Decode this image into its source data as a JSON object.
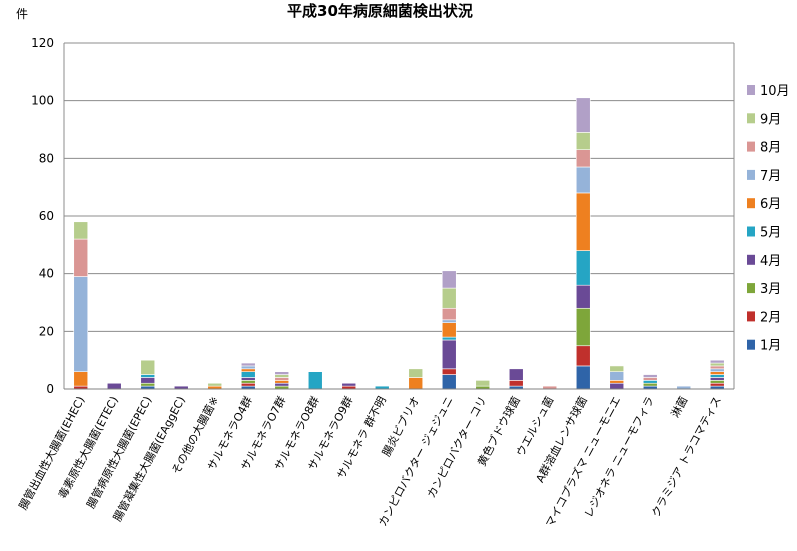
{
  "chart_data": {
    "type": "bar",
    "stacked": true,
    "title": "平成30年病原細菌検出状況",
    "ylabel": "件",
    "xlabel": "",
    "ylim": [
      0,
      120
    ],
    "yticks": [
      0,
      20,
      40,
      60,
      80,
      100,
      120
    ],
    "grid": true,
    "legend_position": "right",
    "categories": [
      "腸管出血性大腸菌(EHEC)",
      "毒素原性大腸菌(ETEC)",
      "腸管病原性大腸菌(EPEC)",
      "腸管凝集性大腸菌(EAggEC)",
      "その他の大腸菌※",
      "サルモネラO4群",
      "サルモネラO7群",
      "サルモネラO8群",
      "サルモネラO9群",
      "サルモネラ 群不明",
      "腸炎ビブリオ",
      "カンピロバクター ジェジュニ",
      "カンピロバクター コリ",
      "黄色ブドウ球菌",
      "ウエルシュ菌",
      "A群溶血レンサ球菌",
      "マイコプラズマ ニューモニエ",
      "レジオネラ ニューモフィラ",
      "淋菌",
      "クラミジア トラコマティス"
    ],
    "series": [
      {
        "name": "1月",
        "color": "#2f64a8",
        "values": [
          0,
          0,
          1,
          0,
          0,
          1,
          0,
          0,
          0,
          0,
          0,
          5,
          0,
          1,
          0,
          8,
          0,
          1,
          0,
          1
        ]
      },
      {
        "name": "2月",
        "color": "#c0302c",
        "values": [
          1,
          0,
          0,
          0,
          0,
          1,
          0,
          0,
          1,
          0,
          0,
          2,
          0,
          2,
          0,
          7,
          0,
          0,
          0,
          1
        ]
      },
      {
        "name": "3月",
        "color": "#7ea63a",
        "values": [
          0,
          0,
          1,
          0,
          0,
          1,
          1,
          0,
          0,
          0,
          0,
          0,
          1,
          0,
          0,
          13,
          0,
          1,
          0,
          1
        ]
      },
      {
        "name": "4月",
        "color": "#6a4a96",
        "values": [
          0,
          2,
          2,
          1,
          0,
          1,
          1,
          0,
          1,
          0,
          0,
          10,
          0,
          4,
          0,
          8,
          2,
          0,
          0,
          1
        ]
      },
      {
        "name": "5月",
        "color": "#25a5c4",
        "values": [
          0,
          0,
          1,
          0,
          0,
          2,
          0,
          6,
          0,
          1,
          0,
          1,
          0,
          0,
          0,
          12,
          0,
          1,
          0,
          1
        ]
      },
      {
        "name": "6月",
        "color": "#ee8020",
        "values": [
          5,
          0,
          0,
          0,
          1,
          1,
          1,
          0,
          0,
          0,
          4,
          5,
          0,
          0,
          0,
          20,
          1,
          0,
          0,
          1
        ]
      },
      {
        "name": "7月",
        "color": "#95b3d9",
        "values": [
          33,
          0,
          0,
          0,
          0,
          1,
          0,
          0,
          0,
          0,
          0,
          1,
          0,
          0,
          0,
          9,
          3,
          0,
          1,
          1
        ]
      },
      {
        "name": "8月",
        "color": "#da9694",
        "values": [
          13,
          0,
          0,
          0,
          0,
          0,
          1,
          0,
          0,
          0,
          0,
          4,
          0,
          0,
          1,
          6,
          0,
          1,
          0,
          1
        ]
      },
      {
        "name": "9月",
        "color": "#b6cd8c",
        "values": [
          6,
          0,
          5,
          0,
          1,
          0,
          1,
          0,
          0,
          0,
          3,
          7,
          2,
          0,
          0,
          6,
          2,
          0,
          0,
          1
        ]
      },
      {
        "name": "10月",
        "color": "#b1a0c7",
        "values": [
          0,
          0,
          0,
          0,
          0,
          1,
          1,
          0,
          0,
          0,
          0,
          6,
          0,
          0,
          0,
          12,
          0,
          1,
          0,
          1
        ]
      }
    ]
  }
}
